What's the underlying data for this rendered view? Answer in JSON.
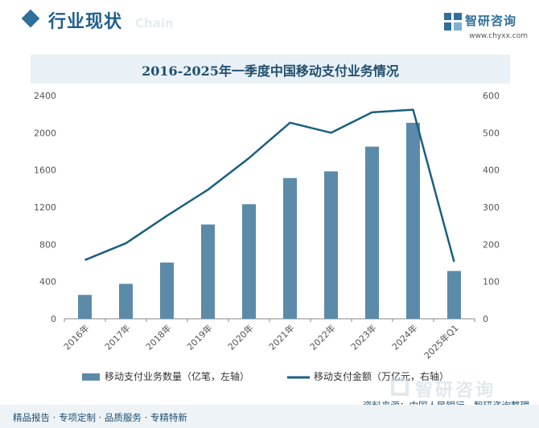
{
  "header": {
    "title": "行业现状",
    "subtitle_ghost": "Chain"
  },
  "logo": {
    "name": "智研咨询",
    "url": "www.chyxx.com"
  },
  "watermark": {
    "name": "智研咨询"
  },
  "colors": {
    "bar": "#5b8ba8",
    "line": "#1b5f80",
    "accent": "#2f6f9a",
    "axis": "#555555"
  },
  "chart_data": {
    "type": "bar",
    "title": "2016-2025年一季度中国移动支付业务情况",
    "categories": [
      "2016年",
      "2017年",
      "2018年",
      "2019年",
      "2020年",
      "2021年",
      "2022年",
      "2023年",
      "2024年",
      "2025年Q1"
    ],
    "series": [
      {
        "name": "移动支付业务数量（亿笔，左轴）",
        "type": "bar",
        "axis": "left",
        "values": [
          257,
          376,
          605,
          1014,
          1232,
          1513,
          1585,
          1851,
          2107,
          514
        ]
      },
      {
        "name": "移动支付金额（万亿元，右轴）",
        "type": "line",
        "axis": "right",
        "values": [
          158,
          203,
          277,
          347,
          432,
          527,
          500,
          555,
          562,
          153
        ]
      }
    ],
    "y_left": {
      "min": 0,
      "max": 2400,
      "ticks": [
        0,
        400,
        800,
        1200,
        1600,
        2000,
        2400
      ]
    },
    "y_right": {
      "min": 0,
      "max": 600,
      "ticks": [
        0,
        100,
        200,
        300,
        400,
        500,
        600
      ]
    },
    "grid": false,
    "legend_position": "bottom"
  },
  "footer": {
    "text": "精品报告 · 专项定制 · 品质服务 · 专精特新",
    "source": "资料来源：中国人民银行、智研咨询整理"
  }
}
